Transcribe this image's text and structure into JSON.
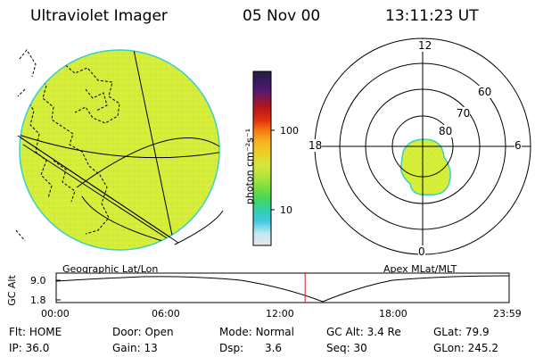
{
  "header": {
    "instrument": "Ultraviolet Imager",
    "date": "05 Nov 00",
    "time": "13:11:23 UT"
  },
  "colors": {
    "emission": "#d6ee3a",
    "emission_edge": "#38cfc6",
    "grid": "#000000",
    "cursor": "#e01818"
  },
  "left_panel": {
    "label": "Geographic Lat/Lon"
  },
  "colorbar": {
    "unit_label": "photon cm⁻²s⁻¹",
    "ticks": [
      "100",
      "10"
    ],
    "scale": "log",
    "stops": [
      "#202040",
      "#3a1a5e",
      "#5a1a6e",
      "#b0151a",
      "#e03010",
      "#f57a10",
      "#f5b020",
      "#eecc22",
      "#d6e640",
      "#a6e43a",
      "#4cd84c",
      "#30d0b0",
      "#40c8e0",
      "#c0e8f0",
      "#e8e8e8"
    ]
  },
  "right_panel": {
    "label": "Apex MLat/MLT",
    "mlt_labels": {
      "top": "12",
      "left": "18",
      "right": "6",
      "bottom": "0"
    },
    "lat_labels": [
      "60",
      "70",
      "80"
    ]
  },
  "timeline": {
    "axis_title": "GC Alt",
    "y_ticks": [
      "9.0",
      "1.8"
    ],
    "x_ticks": [
      "00:00",
      "06:00",
      "12:00",
      "18:00",
      "23:59"
    ],
    "cursor_time_hours": 13.19
  },
  "status": {
    "row1": [
      {
        "label": "Flt:",
        "value": "HOME"
      },
      {
        "label": "Door:",
        "value": "Open"
      },
      {
        "label": "Mode:",
        "value": "Normal"
      },
      {
        "label": "GC Alt:",
        "value": "3.4 Re"
      },
      {
        "label": "GLat:",
        "value": "79.9"
      }
    ],
    "row2": [
      {
        "label": "IP:",
        "value": "36.0"
      },
      {
        "label": "Gain:",
        "value": "13"
      },
      {
        "label": "Dsp:",
        "value": "3.6"
      },
      {
        "label": "Seq:",
        "value": "30"
      },
      {
        "label": "GLon:",
        "value": "245.2"
      }
    ]
  }
}
